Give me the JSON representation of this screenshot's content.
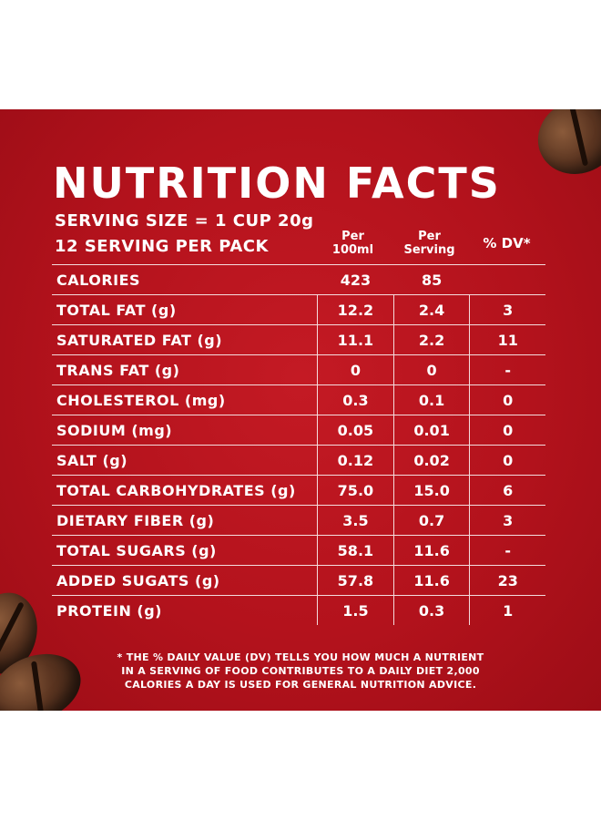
{
  "title": "NUTRITION FACTS",
  "serving_size": "SERVING SIZE = 1 CUP 20g",
  "servings_per_pack": "12 SERVING PER PACK",
  "columns": {
    "per100_line1": "Per",
    "per100_line2": "100ml",
    "perserving_line1": "Per",
    "perserving_line2": "Serving",
    "dv": "% DV*"
  },
  "rows": [
    {
      "label": "CALORIES",
      "per100": "423",
      "serving": "85",
      "dv": ""
    },
    {
      "label": "TOTAL FAT (g)",
      "per100": "12.2",
      "serving": "2.4",
      "dv": "3"
    },
    {
      "label": "SATURATED FAT (g)",
      "per100": "11.1",
      "serving": "2.2",
      "dv": "11"
    },
    {
      "label": "TRANS FAT (g)",
      "per100": "0",
      "serving": "0",
      "dv": "-"
    },
    {
      "label": "CHOLESTEROL (mg)",
      "per100": "0.3",
      "serving": "0.1",
      "dv": "0"
    },
    {
      "label": "SODIUM (mg)",
      "per100": "0.05",
      "serving": "0.01",
      "dv": "0"
    },
    {
      "label": "SALT (g)",
      "per100": "0.12",
      "serving": "0.02",
      "dv": "0"
    },
    {
      "label": "TOTAL CARBOHYDRATES (g)",
      "per100": "75.0",
      "serving": "15.0",
      "dv": "6"
    },
    {
      "label": "DIETARY FIBER (g)",
      "per100": "3.5",
      "serving": "0.7",
      "dv": "3"
    },
    {
      "label": "TOTAL SUGARS (g)",
      "per100": "58.1",
      "serving": "11.6",
      "dv": "-"
    },
    {
      "label": "ADDED SUGATS (g)",
      "per100": "57.8",
      "serving": "11.6",
      "dv": "23"
    },
    {
      "label": "PROTEIN (g)",
      "per100": "1.5",
      "serving": "0.3",
      "dv": "1"
    }
  ],
  "footnote": {
    "line1": "* THE % DAILY VALUE (DV) TELLS YOU HOW MUCH A NUTRIENT",
    "line2": "IN A SERVING OF FOOD CONTRIBUTES TO A DAILY DIET 2,000",
    "line3": "CALORIES A DAY IS USED FOR GENERAL NUTRITION ADVICE."
  },
  "colors": {
    "background": "#b3121c",
    "text": "#ffffff",
    "page": "#ffffff"
  },
  "decorations": [
    "coffee-bean-icon",
    "coffee-bean-icon",
    "coffee-bean-icon"
  ]
}
